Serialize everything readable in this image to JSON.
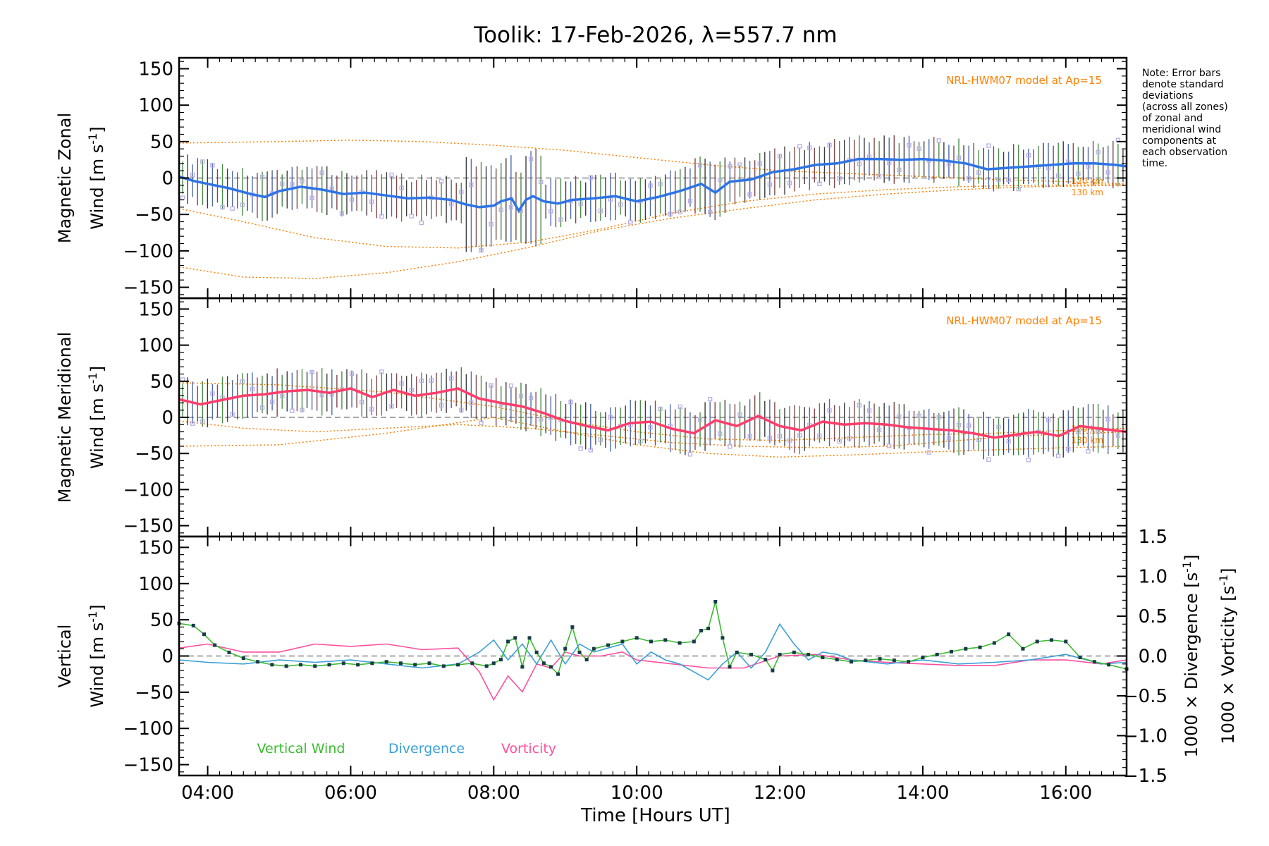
{
  "chart_data": {
    "type": "line",
    "title": "Toolik: 17-Feb-2026, λ=557.7 nm",
    "xlabel": "Time [Hours UT]",
    "xlim": [
      3.6,
      16.85
    ],
    "xticks": [
      "04:00",
      "06:00",
      "08:00",
      "10:00",
      "12:00",
      "14:00",
      "16:00"
    ],
    "xtick_values": [
      4,
      6,
      8,
      10,
      12,
      14,
      16
    ],
    "note_lines": [
      "Note: Error bars",
      "denote standard",
      "deviations",
      "(across all zones)",
      "of zonal and",
      "meridional wind",
      "components at",
      "each observation",
      "time."
    ],
    "colors": {
      "zonal": "#2e74e6",
      "meridional": "#ff3d6b",
      "vertical": "#3bbb30",
      "divergence": "#3aa0d8",
      "vorticity": "#ff4fa0",
      "model": "#ff7f00",
      "scatter": "#b9aee6"
    },
    "panels": [
      {
        "id": "zonal",
        "ylabel_line1": "Magnetic Zonal",
        "ylabel_line2": "Wind [m s",
        "ylabel_sup": "-1",
        "ylabel_close": "]",
        "ylim": [
          -165,
          165
        ],
        "yticks": [
          150,
          100,
          50,
          0,
          -50,
          -100,
          -150
        ],
        "ytick_labels": [
          "150",
          "100",
          "50",
          "0",
          "−50",
          "−100",
          "−150"
        ],
        "model_label": "NRL-HWM07 model at Ap=15",
        "alt_labels": [
          "120 km",
          "130 km"
        ],
        "series": [
          {
            "name": "Magnetic Zonal Wind",
            "x": [
              3.6,
              3.8,
              4.0,
              4.3,
              4.6,
              4.8,
              5.0,
              5.3,
              5.6,
              5.9,
              6.2,
              6.5,
              6.8,
              7.1,
              7.4,
              7.6,
              7.8,
              8.0,
              8.1,
              8.25,
              8.35,
              8.45,
              8.55,
              8.7,
              8.9,
              9.1,
              9.4,
              9.7,
              10.0,
              10.3,
              10.6,
              10.9,
              11.1,
              11.3,
              11.6,
              11.9,
              12.2,
              12.5,
              12.8,
              13.1,
              13.4,
              13.7,
              14.0,
              14.3,
              14.6,
              14.9,
              15.2,
              15.5,
              15.8,
              16.1,
              16.4,
              16.7,
              16.85
            ],
            "values": [
              2,
              -4,
              -8,
              -14,
              -22,
              -26,
              -18,
              -12,
              -16,
              -22,
              -20,
              -24,
              -28,
              -27,
              -30,
              -36,
              -40,
              -38,
              -32,
              -28,
              -45,
              -30,
              -25,
              -32,
              -35,
              -30,
              -28,
              -25,
              -32,
              -26,
              -18,
              -8,
              -20,
              -5,
              -2,
              8,
              12,
              18,
              20,
              26,
              26,
              25,
              26,
              24,
              20,
              12,
              14,
              16,
              18,
              20,
              20,
              18,
              16
            ]
          }
        ],
        "model_series": [
          {
            "name": "HWM07 upper",
            "x": [
              3.6,
              5,
              6,
              7,
              8,
              9,
              10,
              11,
              12,
              13,
              14,
              15,
              16,
              16.85
            ],
            "values": [
              48,
              50,
              52,
              50,
              45,
              38,
              28,
              18,
              10,
              6,
              2,
              -2,
              -5,
              -8
            ]
          },
          {
            "name": "HWM07 middle",
            "x": [
              3.6,
              4.5,
              5.5,
              6.5,
              7.5,
              8.5,
              9.5,
              10.5,
              11.5,
              12.5,
              13.5,
              14.5,
              15.5,
              16.85
            ],
            "values": [
              -42,
              -60,
              -82,
              -94,
              -96,
              -88,
              -70,
              -48,
              -32,
              -22,
              -16,
              -12,
              -10,
              -9
            ]
          },
          {
            "name": "HWM07 lower",
            "x": [
              3.6,
              4.5,
              5.5,
              6.5,
              7.5,
              8.5,
              9.5,
              10.5,
              11.5,
              12.5,
              13.5,
              14.5,
              15.5,
              16.85
            ],
            "values": [
              -122,
              -136,
              -138,
              -130,
              -115,
              -95,
              -72,
              -55,
              -42,
              -30,
              -22,
              -16,
              -12,
              -10
            ]
          }
        ]
      },
      {
        "id": "meridional",
        "ylabel_line1": "Magnetic Meridional",
        "ylabel_line2": "Wind [m s",
        "ylabel_sup": "-1",
        "ylabel_close": "]",
        "ylim": [
          -165,
          165
        ],
        "yticks": [
          150,
          100,
          50,
          0,
          -50,
          -100,
          -150
        ],
        "ytick_labels": [
          "150",
          "100",
          "50",
          "0",
          "−50",
          "−100",
          "−150"
        ],
        "model_label": "NRL-HWM07 model at Ap=15",
        "alt_labels": [
          "120 km",
          "130 km"
        ],
        "series": [
          {
            "name": "Magnetic Meridional Wind",
            "x": [
              3.6,
              3.9,
              4.2,
              4.5,
              4.8,
              5.1,
              5.4,
              5.7,
              6.0,
              6.3,
              6.6,
              6.9,
              7.2,
              7.5,
              7.8,
              8.1,
              8.4,
              8.7,
              9.0,
              9.3,
              9.6,
              9.9,
              10.2,
              10.5,
              10.8,
              11.1,
              11.4,
              11.7,
              12.0,
              12.3,
              12.6,
              12.9,
              13.2,
              13.5,
              13.8,
              14.1,
              14.4,
              14.7,
              15.0,
              15.3,
              15.6,
              15.9,
              16.2,
              16.5,
              16.85
            ],
            "values": [
              25,
              18,
              24,
              30,
              32,
              36,
              38,
              34,
              40,
              28,
              38,
              30,
              34,
              40,
              26,
              20,
              15,
              6,
              -5,
              -12,
              -18,
              -8,
              -6,
              -16,
              -22,
              -4,
              -12,
              2,
              -12,
              -18,
              -6,
              -10,
              -8,
              -10,
              -14,
              -16,
              -18,
              -22,
              -28,
              -24,
              -20,
              -26,
              -12,
              -16,
              -20
            ]
          }
        ],
        "model_series": [
          {
            "name": "HWM07 upper",
            "x": [
              3.6,
              5,
              6.5,
              8,
              9,
              10,
              11,
              12,
              13,
              14,
              15,
              16,
              16.85
            ],
            "values": [
              48,
              45,
              35,
              15,
              -5,
              -20,
              -30,
              -32,
              -28,
              -24,
              -22,
              -18,
              -15
            ]
          },
          {
            "name": "HWM07 middle",
            "x": [
              3.6,
              5,
              6.5,
              8,
              9,
              10,
              11,
              12,
              13,
              14,
              15,
              16,
              16.85
            ],
            "values": [
              -40,
              -38,
              -22,
              0,
              -20,
              -38,
              -50,
              -55,
              -52,
              -48,
              -45,
              -42,
              -40
            ]
          },
          {
            "name": "HWM07 lower",
            "x": [
              3.6,
              4.5,
              5.5,
              6.5,
              7.5,
              8.5,
              9.5,
              10.5,
              11.5,
              12.5,
              13.5,
              14.5,
              15.5,
              16.85
            ],
            "values": [
              -5,
              -15,
              -20,
              -15,
              -10,
              -15,
              -25,
              -35,
              -40,
              -42,
              -40,
              -32,
              -25,
              -20
            ]
          }
        ]
      },
      {
        "id": "vertical",
        "ylabel_line1": "Vertical",
        "ylabel_line2": "Wind [m s",
        "ylabel_sup": "-1",
        "ylabel_close": "]",
        "ylim": [
          -165,
          165
        ],
        "yticks": [
          150,
          100,
          50,
          0,
          -50,
          -100,
          -150
        ],
        "ytick_labels": [
          "150",
          "100",
          "50",
          "0",
          "−50",
          "−100",
          "−150"
        ],
        "right_ylim": [
          -1.5,
          1.5
        ],
        "right_yticks": [
          1.5,
          1.0,
          0.5,
          0.0,
          -0.5,
          -1.0,
          -1.5
        ],
        "right_ytick_labels": [
          "1.5",
          "1.0",
          "0.5",
          "0.0",
          "−0.5",
          "−1.0",
          "−1.5"
        ],
        "right_label_div": "1000 × Divergence [s",
        "right_label_vor": "1000 × Vorticity [s",
        "legend": [
          "Vertical Wind",
          "Divergence",
          "Vorticity"
        ],
        "series": [
          {
            "name": "Vertical Wind",
            "axis": "left",
            "x": [
              3.6,
              3.8,
              3.95,
              4.1,
              4.3,
              4.5,
              4.7,
              4.9,
              5.1,
              5.3,
              5.5,
              5.7,
              5.9,
              6.1,
              6.3,
              6.5,
              6.7,
              6.9,
              7.1,
              7.3,
              7.5,
              7.7,
              7.9,
              8.0,
              8.1,
              8.2,
              8.3,
              8.4,
              8.5,
              8.6,
              8.7,
              8.8,
              8.9,
              9.0,
              9.1,
              9.2,
              9.3,
              9.4,
              9.6,
              9.8,
              10.0,
              10.2,
              10.4,
              10.6,
              10.8,
              10.9,
              11.0,
              11.1,
              11.2,
              11.3,
              11.4,
              11.6,
              11.8,
              11.9,
              12.0,
              12.2,
              12.4,
              12.6,
              12.8,
              13.0,
              13.2,
              13.4,
              13.6,
              13.8,
              14.0,
              14.2,
              14.4,
              14.6,
              14.8,
              15.0,
              15.2,
              15.4,
              15.6,
              15.8,
              16.0,
              16.2,
              16.4,
              16.6,
              16.85
            ],
            "values": [
              45,
              42,
              30,
              15,
              5,
              -3,
              -8,
              -12,
              -14,
              -12,
              -14,
              -12,
              -10,
              -12,
              -10,
              -8,
              -10,
              -12,
              -10,
              -14,
              -12,
              -10,
              -14,
              -10,
              -5,
              20,
              25,
              -15,
              25,
              5,
              -10,
              -15,
              -25,
              10,
              40,
              5,
              -5,
              10,
              15,
              20,
              25,
              20,
              22,
              18,
              20,
              35,
              38,
              75,
              25,
              -15,
              5,
              2,
              -5,
              -20,
              2,
              5,
              2,
              -2,
              -5,
              -8,
              -6,
              -4,
              -6,
              -8,
              -2,
              2,
              6,
              10,
              12,
              18,
              30,
              10,
              20,
              22,
              20,
              -2,
              -8,
              -12,
              -18
            ]
          },
          {
            "name": "Divergence",
            "axis": "right",
            "x": [
              3.6,
              4.0,
              4.5,
              5.0,
              5.5,
              6.0,
              6.5,
              7.0,
              7.5,
              7.8,
              8.0,
              8.2,
              8.4,
              8.6,
              8.8,
              9.0,
              9.2,
              9.4,
              9.6,
              9.8,
              10.0,
              10.2,
              10.4,
              10.6,
              10.8,
              11.0,
              11.2,
              11.4,
              11.6,
              11.8,
              12.0,
              12.2,
              12.4,
              12.6,
              12.8,
              13.0,
              13.5,
              14.0,
              14.5,
              15.0,
              15.5,
              16.0,
              16.5,
              16.85
            ],
            "values": [
              -0.05,
              -0.08,
              -0.1,
              -0.05,
              -0.08,
              -0.05,
              -0.1,
              -0.15,
              -0.1,
              0.05,
              0.2,
              -0.05,
              0.15,
              -0.1,
              0.2,
              -0.1,
              0.15,
              0.05,
              0.1,
              0.15,
              -0.1,
              0.05,
              -0.05,
              -0.1,
              -0.2,
              -0.3,
              -0.1,
              0.05,
              -0.15,
              0.05,
              0.4,
              0.15,
              -0.05,
              0.05,
              0.02,
              -0.05,
              -0.1,
              -0.05,
              -0.1,
              -0.08,
              -0.05,
              0.02,
              -0.1,
              -0.08
            ]
          },
          {
            "name": "Vorticity",
            "axis": "right",
            "x": [
              3.6,
              4.0,
              4.5,
              5.0,
              5.5,
              6.0,
              6.5,
              7.0,
              7.5,
              7.8,
              8.0,
              8.2,
              8.4,
              8.6,
              8.8,
              9.0,
              9.2,
              9.5,
              9.8,
              10.0,
              10.5,
              11.0,
              11.5,
              12.0,
              12.5,
              13.0,
              13.5,
              14.0,
              14.5,
              15.0,
              15.5,
              16.0,
              16.5,
              16.85
            ],
            "values": [
              0.1,
              0.15,
              0.05,
              0.05,
              0.15,
              0.12,
              0.15,
              0.08,
              0.1,
              -0.2,
              -0.55,
              -0.25,
              -0.45,
              -0.1,
              -0.15,
              0.05,
              0.0,
              0.0,
              0.05,
              -0.05,
              -0.1,
              -0.15,
              -0.15,
              0.0,
              0.02,
              -0.05,
              -0.08,
              -0.1,
              -0.12,
              -0.12,
              -0.05,
              -0.05,
              -0.1,
              -0.05
            ]
          }
        ]
      }
    ]
  }
}
